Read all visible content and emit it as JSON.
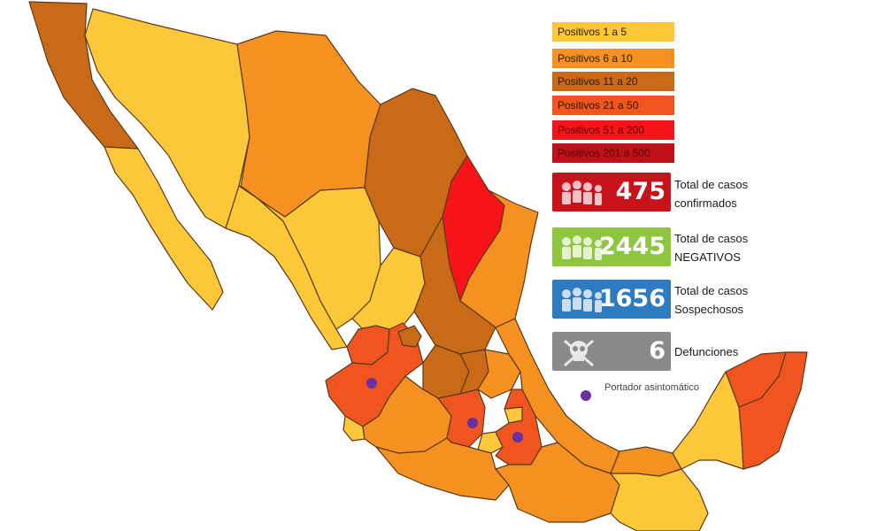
{
  "legend": [
    {
      "label": "Positivos 1 a 5",
      "color": "#fdc73a"
    },
    {
      "label": "Positivos 6 a 10",
      "color": "#f59121"
    },
    {
      "label": "Positivos 11 a 20",
      "color": "#c86a17"
    },
    {
      "label": "Positivos 21 a 50",
      "color": "#f0541f"
    },
    {
      "label": "Positivos 51 a 200",
      "color": "#f6141a"
    },
    {
      "label": "Positivos 201 a 500",
      "color": "#c0111b"
    }
  ],
  "stats": {
    "confirmed": {
      "value": "475",
      "label_line1": "Total de casos",
      "label_line2": "confirmados",
      "color": "#c8121c",
      "icon": "people-icon"
    },
    "negative": {
      "value": "2445",
      "label_line1": "Total de casos",
      "label_line2": "NEGATIVOS",
      "color": "#8ec63f",
      "icon": "people-icon"
    },
    "suspected": {
      "value": "1656",
      "label_line1": "Total de casos",
      "label_line2": "Sospechosos",
      "color": "#2f7bc0",
      "icon": "people-icon"
    },
    "deaths": {
      "value": "6",
      "label": "Defunciones",
      "color": "#8a8a8a",
      "icon": "skull-icon"
    }
  },
  "carrier": {
    "label": "Portador asintomático",
    "color": "#6a2fa0"
  }
}
